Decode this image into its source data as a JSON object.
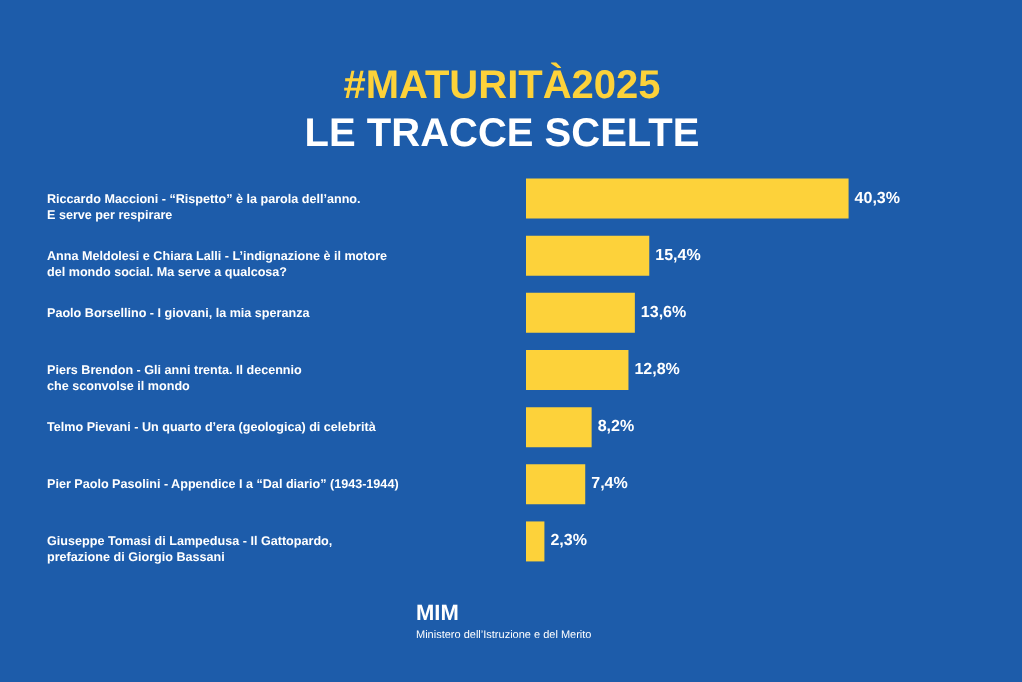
{
  "chart_data": {
    "type": "bar",
    "orientation": "horizontal",
    "title": "#MATURITÀ2025",
    "subtitle": "LE TRACCE SCELTE",
    "categories": [
      "Riccardo Maccioni - “Rispetto” è la parola dell’anno.\nE serve per respirare",
      "Anna Meldolesi e Chiara Lalli - L’indignazione è il motore\ndel mondo social. Ma serve a qualcosa?",
      "Paolo Borsellino - I giovani, la mia speranza",
      "Piers Brendon - Gli anni trenta. Il decennio\nche sconvolse il mondo",
      "Telmo Pievani - Un quarto d’era (geologica) di celebrità",
      "Pier Paolo Pasolini - Appendice I a “Dal diario” (1943-1944)",
      "Giuseppe Tomasi di Lampedusa - Il Gattopardo,\nprefazione di Giorgio Bassani"
    ],
    "values": [
      40.3,
      15.4,
      13.6,
      12.8,
      8.2,
      7.4,
      2.3
    ],
    "value_labels": [
      "40,3%",
      "15,4%",
      "13,6%",
      "12,8%",
      "8,2%",
      "7,4%",
      "2,3%"
    ],
    "color": "#fdd23a",
    "tick_labels": "y",
    "annotations": [
      "MIM",
      "Ministero dell’Istruzione e del Merito"
    ]
  }
}
